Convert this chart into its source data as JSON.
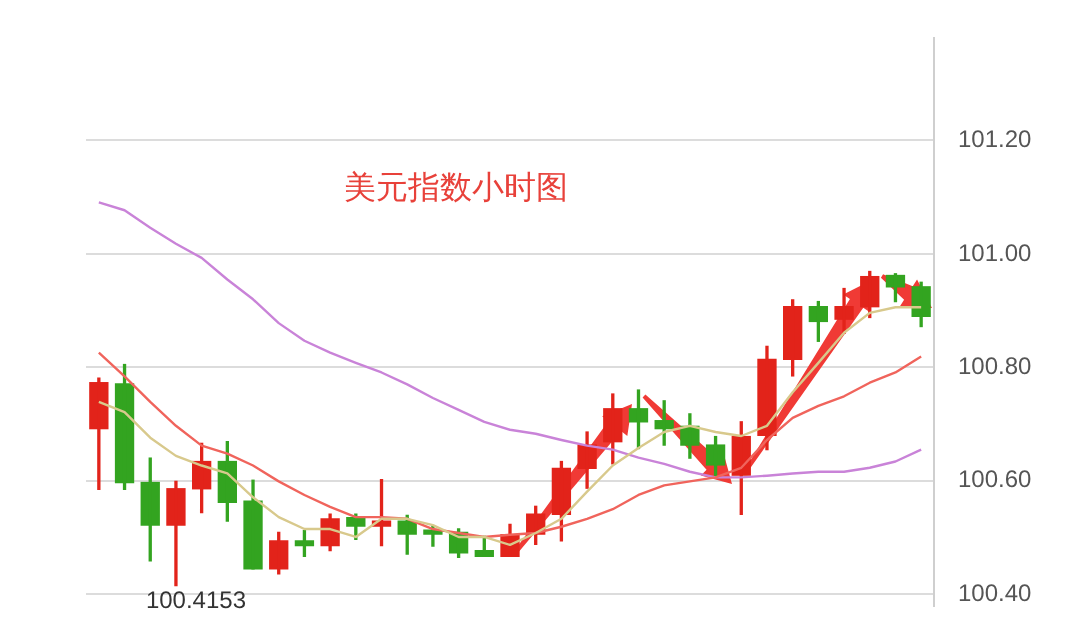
{
  "chart_data": {
    "type": "candlestick",
    "title": "美元指数小时图",
    "categories": [
      null,
      null,
      null,
      null,
      null,
      null,
      null,
      null,
      null,
      null,
      null,
      null,
      null,
      null,
      null,
      null,
      null,
      null,
      null,
      null,
      null,
      null,
      null,
      null,
      null,
      null,
      null,
      null,
      null,
      null,
      null,
      null,
      null
    ],
    "ohlc": [
      [
        100.692,
        100.781,
        100.585,
        100.773
      ],
      [
        100.771,
        100.805,
        100.585,
        100.597
      ],
      [
        100.597,
        100.64,
        100.459,
        100.522
      ],
      [
        100.522,
        100.599,
        100.4153,
        100.586
      ],
      [
        100.586,
        100.666,
        100.544,
        100.634
      ],
      [
        100.634,
        100.669,
        100.529,
        100.562
      ],
      [
        100.564,
        100.601,
        100.445,
        100.445
      ],
      [
        100.445,
        100.509,
        100.436,
        100.494
      ],
      [
        100.494,
        100.512,
        100.467,
        100.486
      ],
      [
        100.486,
        100.541,
        100.477,
        100.533
      ],
      [
        100.535,
        100.541,
        100.497,
        100.52
      ],
      [
        100.52,
        100.602,
        100.486,
        100.529
      ],
      [
        100.529,
        100.539,
        100.471,
        100.506
      ],
      [
        100.509,
        100.521,
        100.485,
        100.506
      ],
      [
        100.509,
        100.515,
        100.465,
        100.473
      ],
      [
        100.477,
        100.502,
        100.467,
        100.467
      ],
      [
        100.467,
        100.523,
        100.467,
        100.505
      ],
      [
        100.506,
        100.555,
        100.488,
        100.541
      ],
      [
        100.541,
        100.634,
        100.494,
        100.622
      ],
      [
        100.622,
        100.686,
        100.587,
        100.663
      ],
      [
        100.669,
        100.753,
        100.63,
        100.727
      ],
      [
        100.727,
        100.76,
        100.657,
        100.704
      ],
      [
        100.706,
        100.741,
        100.663,
        100.692
      ],
      [
        100.696,
        100.718,
        100.64,
        100.663
      ],
      [
        100.663,
        100.678,
        100.608,
        100.628
      ],
      [
        100.61,
        100.704,
        100.541,
        100.678
      ],
      [
        100.68,
        100.837,
        100.655,
        100.814
      ],
      [
        100.814,
        100.919,
        100.785,
        100.907
      ],
      [
        100.907,
        100.916,
        100.846,
        100.881
      ],
      [
        100.885,
        100.939,
        100.86,
        100.907
      ],
      [
        100.907,
        100.969,
        100.888,
        100.96
      ],
      [
        100.962,
        100.965,
        100.916,
        100.942
      ],
      [
        100.942,
        100.95,
        100.872,
        100.89
      ]
    ],
    "colors": [
      "#e2231a",
      "#33a420",
      "#33a420",
      "#e2231a",
      "#e2231a",
      "#33a420",
      "#33a420",
      "#e2231a",
      "#33a420",
      "#e2231a",
      "#33a420",
      "#e2231a",
      "#33a420",
      "#33a420",
      "#33a420",
      "#33a420",
      "#e2231a",
      "#e2231a",
      "#e2231a",
      "#e2231a",
      "#e2231a",
      "#33a420",
      "#33a420",
      "#33a420",
      "#33a420",
      "#e2231a",
      "#e2231a",
      "#e2231a",
      "#33a420",
      "#e2231a",
      "#e2231a",
      "#33a420",
      "#33a420"
    ],
    "series": [
      {
        "type": "line",
        "color": "#d8c98c",
        "values": [
          100.739,
          100.721,
          100.676,
          100.644,
          100.627,
          100.613,
          100.571,
          100.536,
          100.515,
          100.515,
          100.501,
          100.533,
          100.533,
          100.522,
          100.501,
          100.501,
          100.487,
          100.508,
          100.533,
          100.581,
          100.627,
          100.658,
          100.686,
          100.697,
          100.686,
          100.679,
          100.697,
          100.756,
          100.808,
          100.861,
          100.896,
          100.906,
          100.906
        ]
      },
      {
        "type": "line",
        "color": "#f0645c",
        "values": [
          100.826,
          100.784,
          100.739,
          100.697,
          100.662,
          100.648,
          100.627,
          100.599,
          100.575,
          100.554,
          100.536,
          100.536,
          100.533,
          100.515,
          100.508,
          100.501,
          100.505,
          100.508,
          100.519,
          100.533,
          100.55,
          100.575,
          100.592,
          100.599,
          100.606,
          100.623,
          100.672,
          100.711,
          100.732,
          100.749,
          100.773,
          100.791,
          100.819
        ]
      },
      {
        "type": "line",
        "color": "#c983d8",
        "values": [
          101.091,
          101.077,
          101.046,
          101.018,
          100.993,
          100.955,
          100.92,
          100.878,
          100.847,
          100.826,
          100.808,
          100.791,
          100.77,
          100.746,
          100.725,
          100.704,
          100.69,
          100.683,
          100.672,
          100.662,
          100.655,
          100.641,
          100.63,
          100.616,
          100.606,
          100.606,
          100.609,
          100.613,
          100.616,
          100.616,
          100.623,
          100.634,
          100.655
        ]
      }
    ],
    "ylim": [
      100.38,
      101.38
    ],
    "yticks": [
      {
        "value": 100.4,
        "label": "100.40"
      },
      {
        "value": 100.6,
        "label": "100.60"
      },
      {
        "value": 100.8,
        "label": "100.80"
      },
      {
        "value": 101.0,
        "label": "101.00"
      },
      {
        "value": 101.2,
        "label": "101.20"
      }
    ],
    "grid": "y",
    "legend": false,
    "tick_labels": "y",
    "annotations": [
      "100.4153"
    ]
  }
}
